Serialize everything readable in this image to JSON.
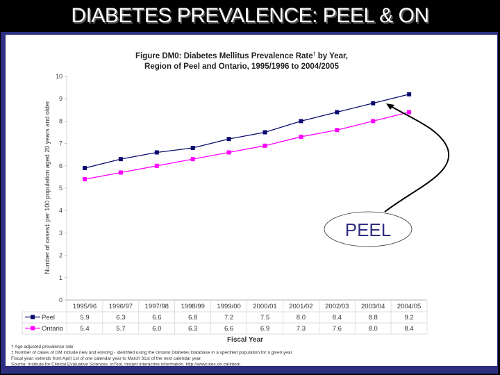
{
  "slide_title": "DIABETES PREVALENCE: PEEL & ON",
  "callout": {
    "label": "PEEL"
  },
  "chart_data": {
    "type": "line",
    "title_line1": "Figure DM0: Diabetes Mellitus Prevalence Rate",
    "title_sup": "†",
    "title_line1_end": " by Year,",
    "title_line2": "Region of Peel and Ontario, 1995/1996 to 2004/2005",
    "ylabel": "Number of cases‡ per 100 population aged 20 years and older",
    "xlabel": "Fiscal Year",
    "ylim": [
      0,
      10
    ],
    "yticks": [
      "0",
      "1",
      "2",
      "3",
      "4",
      "5",
      "6",
      "7",
      "8",
      "9",
      "10"
    ],
    "categories": [
      "1995/96",
      "1996/97",
      "1997/98",
      "1998/99",
      "1999/00",
      "2000/01",
      "2001/02",
      "2002/03",
      "2003/04",
      "2004/05"
    ],
    "series": [
      {
        "name": "Peel",
        "color": "#0a0a6e",
        "values": [
          5.9,
          6.3,
          6.6,
          6.8,
          7.2,
          7.5,
          8.0,
          8.4,
          8.8,
          9.2
        ],
        "labels": [
          "5.9",
          "6.3",
          "6.6",
          "6.8",
          "7.2",
          "7.5",
          "8.0",
          "8.4",
          "8.8",
          "9.2"
        ]
      },
      {
        "name": "Ontario",
        "color": "#ff00ff",
        "values": [
          5.4,
          5.7,
          6.0,
          6.3,
          6.6,
          6.9,
          7.3,
          7.6,
          8.0,
          8.4
        ],
        "labels": [
          "5.4",
          "5.7",
          "6.0",
          "6.3",
          "6.6",
          "6.9",
          "7.3",
          "7.6",
          "8.0",
          "8.4"
        ]
      }
    ],
    "legend": "table-below",
    "grid": false,
    "footnotes": [
      "† Age adjusted prevalence rate",
      "‡ Number of cases of DM include new and existing - identified using the Ontario Diabetes Database in a specified population for a given year.",
      "Fiscal year: extends from April 1st of one calendar year to March 31st of the next calendar year.",
      "Source: Institute for Clinical Evaluative Sciences. inTool, instant interactive information. http://www.ices.on.ca/intool"
    ]
  }
}
